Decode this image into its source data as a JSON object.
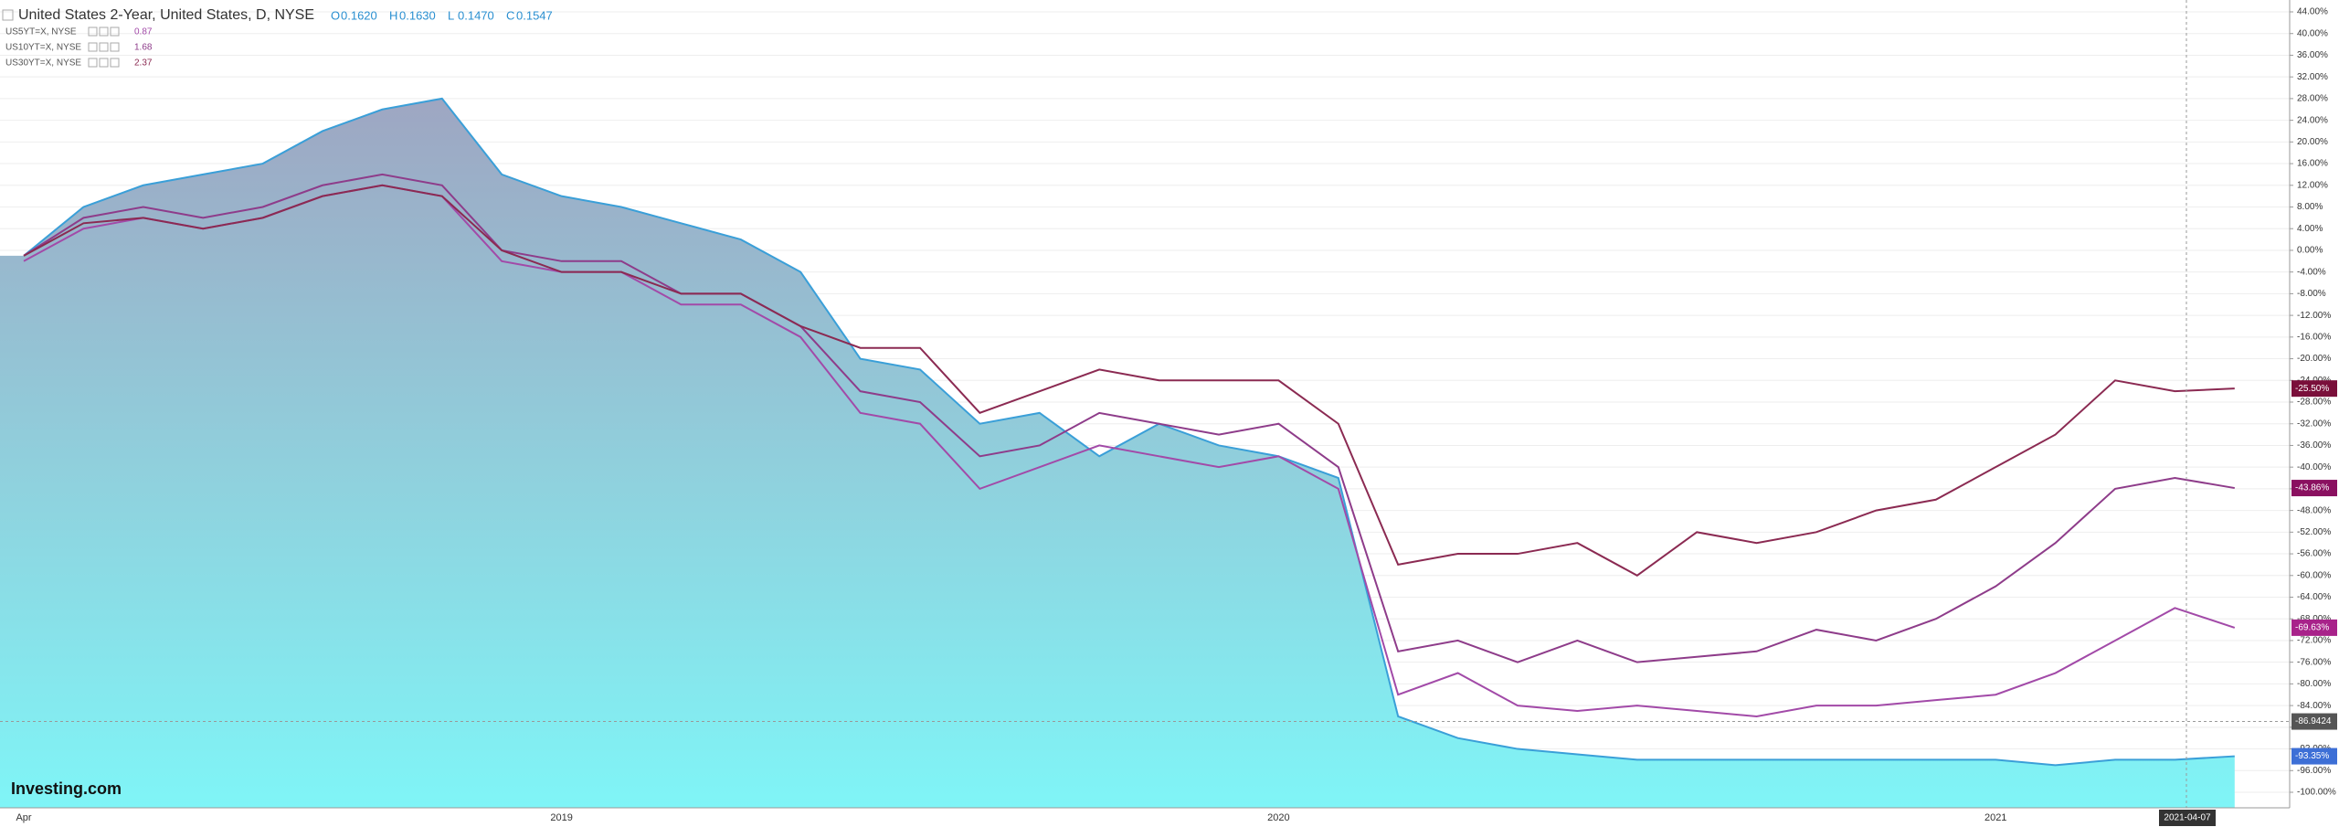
{
  "chart_data": {
    "type": "area-line",
    "title": "United States 2-Year, United States, D, NYSE",
    "ohlc": [
      {
        "label": "O",
        "value": "0.1620"
      },
      {
        "label": "H",
        "value": "0.1630"
      },
      {
        "label": "L",
        "value": "0.1470"
      },
      {
        "label": "C",
        "value": "0.1547"
      }
    ],
    "brand": "Investing.com",
    "categories": [
      "Apr",
      null,
      null,
      null,
      null,
      null,
      null,
      null,
      null,
      "2019",
      null,
      null,
      null,
      null,
      null,
      null,
      null,
      null,
      null,
      null,
      null,
      "2020",
      null,
      null,
      null,
      null,
      null,
      null,
      null,
      null,
      null,
      null,
      null,
      "2021",
      null,
      null,
      null,
      null
    ],
    "series": [
      {
        "name": "United States 2-Year",
        "style": "area",
        "color": "#3a9fd8",
        "end_label": "-93.35%",
        "tag_color": "#3d6fd6",
        "values": [
          -1,
          8,
          12,
          14,
          16,
          22,
          26,
          28,
          14,
          10,
          8,
          5,
          2,
          -4,
          -20,
          -22,
          -32,
          -30,
          -38,
          -32,
          -36,
          -38,
          -42,
          -86,
          -90,
          -92,
          -93,
          -94,
          -94,
          -94,
          -94,
          -94,
          -94,
          -94,
          -95,
          -94,
          -94,
          -93.35
        ]
      },
      {
        "name": "US5YT=X, NYSE",
        "legend_value": 0.87,
        "style": "line",
        "color": "#a24aa8",
        "end_label": "-69.63%",
        "tag_color": "#a8228a",
        "values": [
          -2,
          4,
          6,
          4,
          6,
          10,
          12,
          10,
          -2,
          -4,
          -4,
          -10,
          -10,
          -16,
          -30,
          -32,
          -44,
          -40,
          -36,
          -38,
          -40,
          -38,
          -44,
          -82,
          -78,
          -84,
          -85,
          -84,
          -85,
          -86,
          -84,
          -84,
          -83,
          -82,
          -78,
          -72,
          -66,
          -69.63
        ]
      },
      {
        "name": "US10YT=X, NYSE",
        "legend_value": 1.68,
        "style": "line",
        "color": "#8e3c8a",
        "end_label": "-43.86%",
        "tag_color": "#8a1060",
        "values": [
          -1,
          6,
          8,
          6,
          8,
          12,
          14,
          12,
          0,
          -2,
          -2,
          -8,
          -8,
          -14,
          -26,
          -28,
          -38,
          -36,
          -30,
          -32,
          -34,
          -32,
          -40,
          -74,
          -72,
          -76,
          -72,
          -76,
          -75,
          -74,
          -70,
          -72,
          -68,
          -62,
          -54,
          -44,
          -42,
          -43.86
        ]
      },
      {
        "name": "US30YT=X, NYSE",
        "legend_value": 2.37,
        "style": "line",
        "color": "#8b2a52",
        "end_label": "-25.50%",
        "tag_color": "#7a0f3a",
        "values": [
          -1,
          5,
          6,
          4,
          6,
          10,
          12,
          10,
          0,
          -4,
          -4,
          -8,
          -8,
          -14,
          -18,
          -18,
          -30,
          -26,
          -22,
          -24,
          -24,
          -24,
          -32,
          -58,
          -56,
          -56,
          -54,
          -60,
          -52,
          -54,
          -52,
          -48,
          -46,
          -40,
          -34,
          -24,
          -26,
          -25.5
        ]
      }
    ],
    "crosshair": {
      "date": "2021-04-07",
      "value": -86.9424
    },
    "ylim": [
      -100,
      44
    ],
    "yticks": [
      {
        "value": 44,
        "label": "44.00%"
      },
      {
        "value": 40,
        "label": "40.00%"
      },
      {
        "value": 36,
        "label": "36.00%"
      },
      {
        "value": 32,
        "label": "32.00%"
      },
      {
        "value": 28,
        "label": "28.00%"
      },
      {
        "value": 24,
        "label": "24.00%"
      },
      {
        "value": 20,
        "label": "20.00%"
      },
      {
        "value": 16,
        "label": "16.00%"
      },
      {
        "value": 12,
        "label": "12.00%"
      },
      {
        "value": 8,
        "label": "8.00%"
      },
      {
        "value": 4,
        "label": "4.00%"
      },
      {
        "value": 0,
        "label": "0.00%"
      },
      {
        "value": -4,
        "label": "-4.00%"
      },
      {
        "value": -8,
        "label": "-8.00%"
      },
      {
        "value": -12,
        "label": "-12.00%"
      },
      {
        "value": -16,
        "label": "-16.00%"
      },
      {
        "value": -20,
        "label": "-20.00%"
      },
      {
        "value": -24,
        "label": "-24.00%"
      },
      {
        "value": -28,
        "label": "-28.00%"
      },
      {
        "value": -32,
        "label": "-32.00%"
      },
      {
        "value": -36,
        "label": "-36.00%"
      },
      {
        "value": -40,
        "label": "-40.00%"
      },
      {
        "value": -44,
        "label": "-44.00%"
      },
      {
        "value": -48,
        "label": "-48.00%"
      },
      {
        "value": -52,
        "label": "-52.00%"
      },
      {
        "value": -56,
        "label": "-56.00%"
      },
      {
        "value": -60,
        "label": "-60.00%"
      },
      {
        "value": -64,
        "label": "-64.00%"
      },
      {
        "value": -68,
        "label": "-68.00%"
      },
      {
        "value": -72,
        "label": "-72.00%"
      },
      {
        "value": -76,
        "label": "-76.00%"
      },
      {
        "value": -80,
        "label": "-80.00%"
      },
      {
        "value": -84,
        "label": "-84.00%"
      },
      {
        "value": -88,
        "label": "-88.00%"
      },
      {
        "value": -92,
        "label": "-92.00%"
      },
      {
        "value": -96,
        "label": "-96.00%"
      },
      {
        "value": -100,
        "label": "-100.00%"
      }
    ],
    "grid": true
  }
}
